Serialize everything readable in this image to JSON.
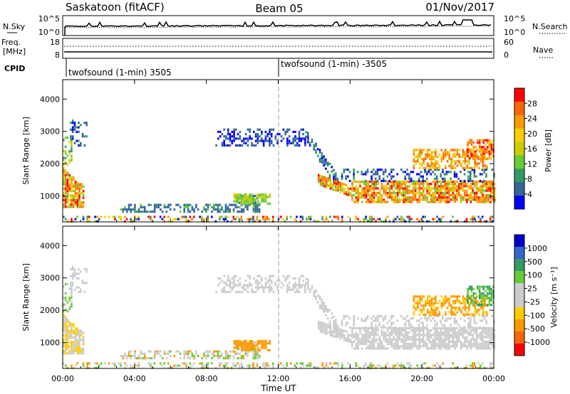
{
  "header": {
    "site": "Saskatoon (fitACF)",
    "beam": "Beam 05",
    "date": "01/Nov/2017"
  },
  "noise_panel": {
    "left_label": "N.Sky",
    "left_ticks": [
      "10^5",
      "10^0"
    ],
    "right_ticks": [
      "10^5",
      "10^0"
    ],
    "right_label": "N.Search"
  },
  "freq_panel": {
    "left_label_1": "Freq.",
    "left_label_2": "[MHz]",
    "left_ticks": [
      "18",
      "8"
    ],
    "right_ticks": [
      "60",
      "0"
    ],
    "right_label": "Nave"
  },
  "cpid": {
    "label": "CPID",
    "segments": [
      {
        "start_hour": 0,
        "name": "twofsound (1-min) 3505"
      },
      {
        "start_hour": 12,
        "name": "twofsound (1-min) -3505"
      }
    ]
  },
  "time_axis": {
    "label": "Time UT",
    "ticks": [
      "00:00",
      "04:00",
      "08:00",
      "12:00",
      "16:00",
      "20:00",
      "00:00"
    ],
    "tick_hours": [
      0,
      4,
      8,
      12,
      16,
      20,
      24
    ],
    "range_hours": [
      0,
      24
    ]
  },
  "chart_data": [
    {
      "type": "heatmap",
      "name": "power",
      "ylabel": "Slant Range [km]",
      "yticks": [
        1000,
        2000,
        3000,
        4000
      ],
      "ylim": [
        200,
        4600
      ],
      "xlim_hours": [
        0,
        24
      ],
      "colorbar": {
        "label": "Power [dB]",
        "ticks": [
          "28",
          "24",
          "20",
          "16",
          "12",
          "8",
          "4"
        ],
        "colors": [
          "#ff0000",
          "#ff6600",
          "#ff9900",
          "#ffcc00",
          "#cccc00",
          "#66cc33",
          "#339966",
          "#336699",
          "#0000ff"
        ]
      }
    },
    {
      "type": "heatmap",
      "name": "velocity",
      "ylabel": "Slant Range [km]",
      "yticks": [
        1000,
        2000,
        3000,
        4000
      ],
      "ylim": [
        200,
        4600
      ],
      "xlim_hours": [
        0,
        24
      ],
      "colorbar": {
        "label": "Velocity [m s⁻¹]",
        "ticks": [
          "1000",
          "500",
          "100",
          "25",
          "-25",
          "-100",
          "-500",
          "-1000"
        ],
        "colors": [
          "#0000cc",
          "#3366cc",
          "#339966",
          "#66cc33",
          "#cccccc",
          "#cccccc",
          "#ffcc00",
          "#ff9900",
          "#ff6600",
          "#ff0000"
        ]
      }
    }
  ]
}
